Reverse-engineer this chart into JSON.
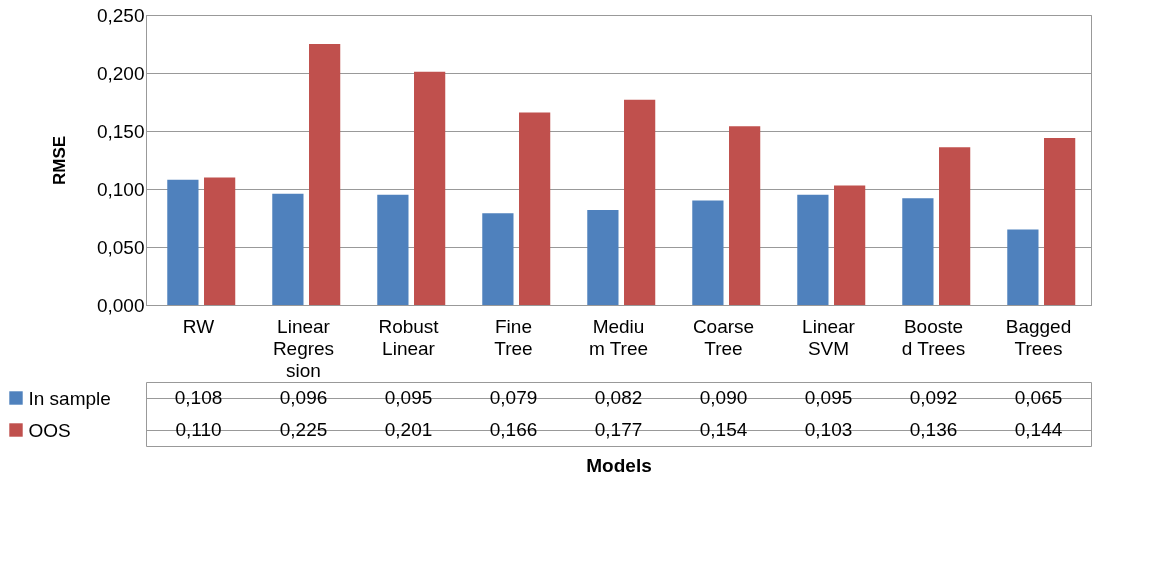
{
  "chart_data": {
    "type": "bar",
    "xlabel": "Models",
    "ylabel": "RMSE",
    "categories": [
      "RW",
      "Linear\nRegres\nsion",
      "Robust\nLinear",
      "Fine\nTree",
      "Mediu\nm Tree",
      "Coarse\nTree",
      "Linear\nSVM",
      "Booste\nd Trees",
      "Bagged\nTrees"
    ],
    "series": [
      {
        "name": "In sample",
        "color": "#4f81bd",
        "values": [
          0.108,
          0.096,
          0.095,
          0.079,
          0.082,
          0.09,
          0.095,
          0.092,
          0.065
        ],
        "value_labels": [
          "0,108",
          "0,096",
          "0,095",
          "0,079",
          "0,082",
          "0,090",
          "0,095",
          "0,092",
          "0,065"
        ]
      },
      {
        "name": "OOS",
        "color": "#c0504d",
        "values": [
          0.11,
          0.225,
          0.201,
          0.166,
          0.177,
          0.154,
          0.103,
          0.136,
          0.144
        ],
        "value_labels": [
          "0,110",
          "0,225",
          "0,201",
          "0,166",
          "0,177",
          "0,154",
          "0,103",
          "0,136",
          "0,144"
        ]
      }
    ],
    "ylim": [
      0,
      0.25
    ],
    "yticks": [
      {
        "value": 0,
        "label": "0,000"
      },
      {
        "value": 0.05,
        "label": "0,050"
      },
      {
        "value": 0.1,
        "label": "0,100"
      },
      {
        "value": 0.15,
        "label": "0,150"
      },
      {
        "value": 0.2,
        "label": "0,200"
      },
      {
        "value": 0.25,
        "label": "0,250"
      }
    ],
    "grid": "y",
    "legend": "bottom left"
  }
}
